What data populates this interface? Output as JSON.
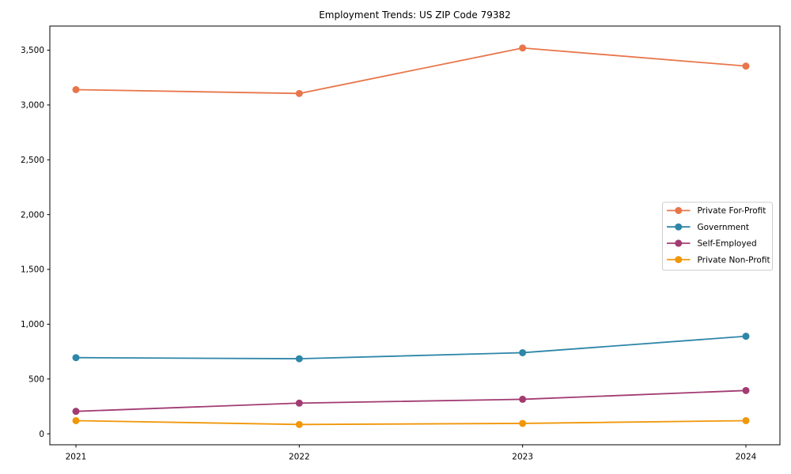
{
  "figure": {
    "background": "#ffffff",
    "plot_border_color": "#000000",
    "text_color": "#000000"
  },
  "chart_data": {
    "type": "line",
    "title": "Employment Trends: US ZIP Code 79382",
    "xlabel": "",
    "ylabel": "",
    "categories": [
      "2021",
      "2022",
      "2023",
      "2024"
    ],
    "series": [
      {
        "name": "Private For-Profit",
        "color": "#e8764b",
        "values": [
          3140,
          3105,
          3520,
          3355
        ]
      },
      {
        "name": "Government",
        "color": "#2e86a8",
        "values": [
          695,
          685,
          740,
          890
        ]
      },
      {
        "name": "Self-Employed",
        "color": "#a23b72",
        "values": [
          205,
          280,
          315,
          395
        ]
      },
      {
        "name": "Private Non-Profit",
        "color": "#f0970a",
        "values": [
          120,
          85,
          95,
          120
        ]
      }
    ],
    "yticks": [
      0,
      500,
      1000,
      1500,
      2000,
      2500,
      3000,
      3500
    ],
    "ytick_labels": [
      "0",
      "500",
      "1,000",
      "1,500",
      "2,000",
      "2,500",
      "3,000",
      "3,500"
    ],
    "ylim": [
      -100,
      3720
    ],
    "grid": false,
    "marker": "circle",
    "legend": {
      "position": "center right",
      "border_color": "#cccccc",
      "background": "#ffffff"
    }
  }
}
